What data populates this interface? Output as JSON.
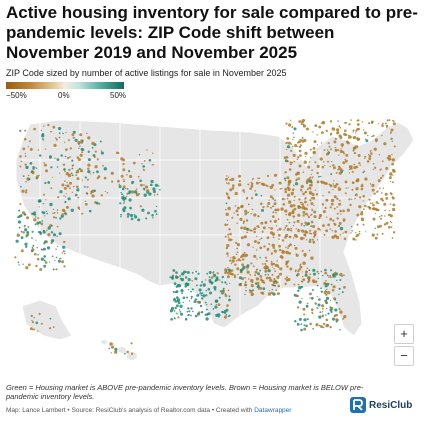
{
  "title": "Active housing inventory for sale compared to pre-pandemic levels: ZIP Code shift between November 2019 and November 2025",
  "subtitle": "ZIP Code sized by number of active listings for sale in November 2025",
  "legend": {
    "min_label": "−50%",
    "mid_label": "0%",
    "max_label": "50%",
    "colors": {
      "low": "#9a5b12",
      "mid": "#f3ece0",
      "high": "#0f6e5f"
    }
  },
  "map": {
    "land_color": "#e6e6e6",
    "border_color": "#ffffff",
    "brown": "#b07a2a",
    "green": "#1f8c78"
  },
  "zoom": {
    "in_label": "+",
    "out_label": "−"
  },
  "note": "Green = Housing market is ABOVE pre-pandemic inventory levels. Brown = Housing market is BELOW pre-pandemic inventory levels.",
  "credits": {
    "prefix": "Map: Lance Lambert • Source: ResiClub's analysis of Realtor.com data • Created with",
    "link": "Datawrapper"
  },
  "brand": {
    "name": "ResiClub",
    "icon": "resiclub-logo-icon"
  }
}
